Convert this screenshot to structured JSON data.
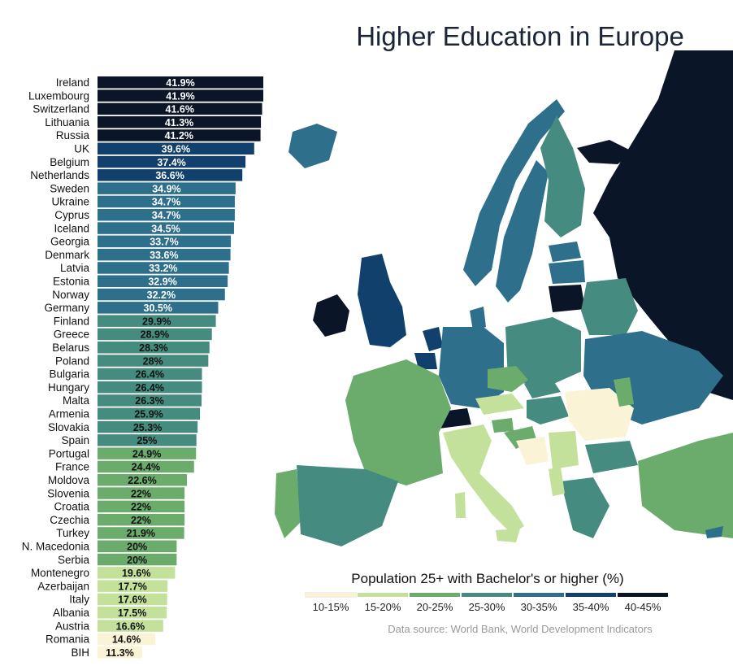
{
  "title": "Higher Education in Europe",
  "legend_title": "Population 25+ with Bachelor's or higher (%)",
  "source": "Data source: World Bank, World Development Indicators",
  "legend": [
    {
      "label": "10-15%",
      "color": "#fbf3d6"
    },
    {
      "label": "15-20%",
      "color": "#c3e19a"
    },
    {
      "label": "20-25%",
      "color": "#6bac6c"
    },
    {
      "label": "25-30%",
      "color": "#458b80"
    },
    {
      "label": "30-35%",
      "color": "#2e6f8c"
    },
    {
      "label": "35-40%",
      "color": "#10406b"
    },
    {
      "label": "40-45%",
      "color": "#0a1628"
    }
  ],
  "chart_data": {
    "type": "bar",
    "orientation": "horizontal",
    "title": "Higher Education in Europe",
    "xlabel": "Population 25+ with Bachelor's or higher (%)",
    "categories": [
      "Ireland",
      "Luxembourg",
      "Switzerland",
      "Lithuania",
      "Russia",
      "UK",
      "Belgium",
      "Netherlands",
      "Sweden",
      "Ukraine",
      "Cyprus",
      "Iceland",
      "Georgia",
      "Denmark",
      "Latvia",
      "Estonia",
      "Norway",
      "Germany",
      "Finland",
      "Greece",
      "Belarus",
      "Poland",
      "Bulgaria",
      "Hungary",
      "Malta",
      "Armenia",
      "Slovakia",
      "Spain",
      "Portugal",
      "France",
      "Moldova",
      "Slovenia",
      "Croatia",
      "Czechia",
      "Turkey",
      "N. Macedonia",
      "Serbia",
      "Montenegro",
      "Azerbaijan",
      "Italy",
      "Albania",
      "Austria",
      "Romania",
      "BIH"
    ],
    "values": [
      41.9,
      41.9,
      41.6,
      41.3,
      41.2,
      39.6,
      37.4,
      36.6,
      34.9,
      34.7,
      34.7,
      34.5,
      33.7,
      33.6,
      33.2,
      32.9,
      32.2,
      30.5,
      29.9,
      28.9,
      28.3,
      28,
      26.4,
      26.4,
      26.3,
      25.9,
      25.3,
      25,
      24.9,
      24.4,
      22.6,
      22,
      22,
      22,
      21.9,
      20,
      20,
      19.6,
      17.7,
      17.6,
      17.5,
      16.6,
      14.6,
      11.3
    ],
    "labels": [
      "41.9%",
      "41.9%",
      "41.6%",
      "41.3%",
      "41.2%",
      "39.6%",
      "37.4%",
      "36.6%",
      "34.9%",
      "34.7%",
      "34.7%",
      "34.5%",
      "33.7%",
      "33.6%",
      "33.2%",
      "32.9%",
      "32.2%",
      "30.5%",
      "29.9%",
      "28.9%",
      "28.3%",
      "28%",
      "26.4%",
      "26.4%",
      "26.3%",
      "25.9%",
      "25.3%",
      "25%",
      "24.9%",
      "24.4%",
      "22.6%",
      "22%",
      "22%",
      "22%",
      "21.9%",
      "20%",
      "20%",
      "19.6%",
      "17.7%",
      "17.6%",
      "17.5%",
      "16.6%",
      "14.6%",
      "11.3%"
    ],
    "xlim": [
      0,
      41.9
    ],
    "grid": false,
    "legend_position": "bottom-right"
  }
}
